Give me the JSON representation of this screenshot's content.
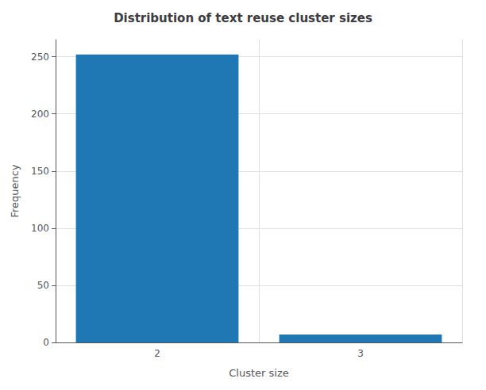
{
  "chart_data": {
    "type": "bar",
    "title": "Distribution of text reuse cluster sizes",
    "xlabel": "Cluster size",
    "ylabel": "Frequency",
    "categories": [
      "2",
      "3"
    ],
    "values": [
      252,
      7
    ],
    "color": "#1f77b4",
    "ylim": [
      0,
      265
    ],
    "yticks": [
      0,
      50,
      100,
      150,
      200,
      250
    ],
    "grid": true
  }
}
